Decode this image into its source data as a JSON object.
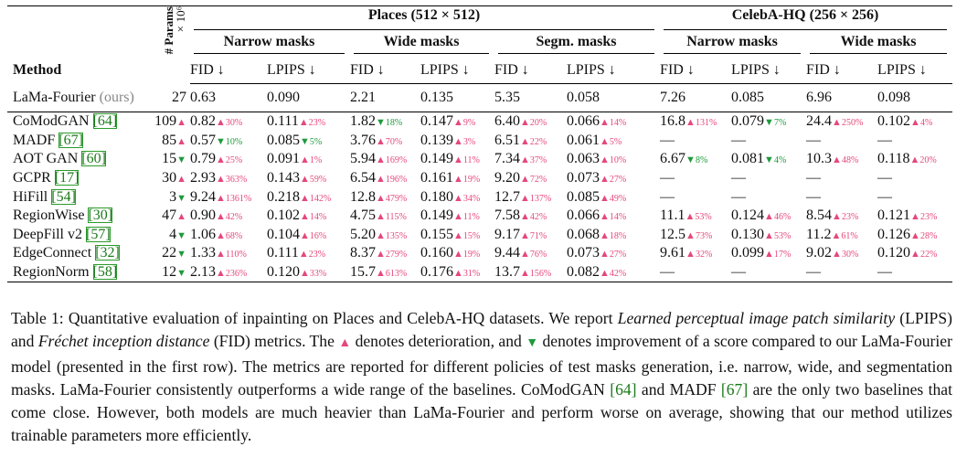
{
  "table": {
    "header": {
      "method": "Method",
      "params": "# Params",
      "params_unit": "×10⁶",
      "datasets": [
        "Places (512 × 512)",
        "CelebA-HQ (256 × 256)"
      ],
      "masks": [
        "Narrow masks",
        "Wide masks",
        "Segm. masks",
        "Narrow masks",
        "Wide masks"
      ],
      "metrics": [
        "FID ↓",
        "LPIPS ↓",
        "FID ↓",
        "LPIPS ↓",
        "FID ↓",
        "LPIPS ↓",
        "FID ↓",
        "LPIPS ↓",
        "FID ↓",
        "LPIPS ↓"
      ]
    },
    "arrow_colors": {
      "▲": "#e5487a",
      "▼": "#1f9a3c"
    },
    "baseline": {
      "method": "LaMa-Fourier",
      "note": "(ours)",
      "params": "27",
      "cells": [
        "0.63",
        "0.090",
        "2.21",
        "0.135",
        "5.35",
        "0.058",
        "7.26",
        "0.085",
        "6.96",
        "0.098"
      ]
    },
    "rows": [
      {
        "method": "CoModGAN",
        "ref": "[64]",
        "params": "109",
        "params_arrow": "▲",
        "cells": [
          [
            "0.82",
            "▲",
            "30%"
          ],
          [
            "0.111",
            "▲",
            "23%"
          ],
          [
            "1.82",
            "▼",
            "18%"
          ],
          [
            "0.147",
            "▲",
            "9%"
          ],
          [
            "6.40",
            "▲",
            "20%"
          ],
          [
            "0.066",
            "▲",
            "14%"
          ],
          [
            "16.8",
            "▲",
            "131%"
          ],
          [
            "0.079",
            "▼",
            "7%"
          ],
          [
            "24.4",
            "▲",
            "250%"
          ],
          [
            "0.102",
            "▲",
            "4%"
          ]
        ]
      },
      {
        "method": "MADF",
        "ref": "[67]",
        "params": "85",
        "params_arrow": "▲",
        "cells": [
          [
            "0.57",
            "▼",
            "10%"
          ],
          [
            "0.085",
            "▼",
            "5%"
          ],
          [
            "3.76",
            "▲",
            "70%"
          ],
          [
            "0.139",
            "▲",
            "3%"
          ],
          [
            "6.51",
            "▲",
            "22%"
          ],
          [
            "0.061",
            "▲",
            "5%"
          ],
          "—",
          "—",
          "—",
          "—"
        ]
      },
      {
        "method": "AOT GAN",
        "ref": "[60]",
        "params": "15",
        "params_arrow": "▼",
        "cells": [
          [
            "0.79",
            "▲",
            "25%"
          ],
          [
            "0.091",
            "▲",
            "1%"
          ],
          [
            "5.94",
            "▲",
            "169%"
          ],
          [
            "0.149",
            "▲",
            "11%"
          ],
          [
            "7.34",
            "▲",
            "37%"
          ],
          [
            "0.063",
            "▲",
            "10%"
          ],
          [
            "6.67",
            "▼",
            "8%"
          ],
          [
            "0.081",
            "▼",
            "4%"
          ],
          [
            "10.3",
            "▲",
            "48%"
          ],
          [
            "0.118",
            "▲",
            "20%"
          ]
        ]
      },
      {
        "method": "GCPR",
        "ref": "[17]",
        "params": "30",
        "params_arrow": "▲",
        "cells": [
          [
            "2.93",
            "▲",
            "363%"
          ],
          [
            "0.143",
            "▲",
            "59%"
          ],
          [
            "6.54",
            "▲",
            "196%"
          ],
          [
            "0.161",
            "▲",
            "19%"
          ],
          [
            "9.20",
            "▲",
            "72%"
          ],
          [
            "0.073",
            "▲",
            "27%"
          ],
          "—",
          "—",
          "—",
          "—"
        ]
      },
      {
        "method": "HiFill",
        "ref": "[54]",
        "params": "3",
        "params_arrow": "▼",
        "cells": [
          [
            "9.24",
            "▲",
            "1361%"
          ],
          [
            "0.218",
            "▲",
            "142%"
          ],
          [
            "12.8",
            "▲",
            "479%"
          ],
          [
            "0.180",
            "▲",
            "34%"
          ],
          [
            "12.7",
            "▲",
            "137%"
          ],
          [
            "0.085",
            "▲",
            "49%"
          ],
          "—",
          "—",
          "—",
          "—"
        ]
      },
      {
        "method": "RegionWise",
        "ref": "[30]",
        "params": "47",
        "params_arrow": "▲",
        "cells": [
          [
            "0.90",
            "▲",
            "42%"
          ],
          [
            "0.102",
            "▲",
            "14%"
          ],
          [
            "4.75",
            "▲",
            "115%"
          ],
          [
            "0.149",
            "▲",
            "11%"
          ],
          [
            "7.58",
            "▲",
            "42%"
          ],
          [
            "0.066",
            "▲",
            "14%"
          ],
          [
            "11.1",
            "▲",
            "53%"
          ],
          [
            "0.124",
            "▲",
            "46%"
          ],
          [
            "8.54",
            "▲",
            "23%"
          ],
          [
            "0.121",
            "▲",
            "23%"
          ]
        ]
      },
      {
        "method": "DeepFill v2",
        "ref": "[57]",
        "params": "4",
        "params_arrow": "▼",
        "cells": [
          [
            "1.06",
            "▲",
            "68%"
          ],
          [
            "0.104",
            "▲",
            "16%"
          ],
          [
            "5.20",
            "▲",
            "135%"
          ],
          [
            "0.155",
            "▲",
            "15%"
          ],
          [
            "9.17",
            "▲",
            "71%"
          ],
          [
            "0.068",
            "▲",
            "18%"
          ],
          [
            "12.5",
            "▲",
            "73%"
          ],
          [
            "0.130",
            "▲",
            "53%"
          ],
          [
            "11.2",
            "▲",
            "61%"
          ],
          [
            "0.126",
            "▲",
            "28%"
          ]
        ]
      },
      {
        "method": "EdgeConnect",
        "ref": "[32]",
        "params": "22",
        "params_arrow": "▼",
        "cells": [
          [
            "1.33",
            "▲",
            "110%"
          ],
          [
            "0.111",
            "▲",
            "23%"
          ],
          [
            "8.37",
            "▲",
            "279%"
          ],
          [
            "0.160",
            "▲",
            "19%"
          ],
          [
            "9.44",
            "▲",
            "76%"
          ],
          [
            "0.073",
            "▲",
            "27%"
          ],
          [
            "9.61",
            "▲",
            "32%"
          ],
          [
            "0.099",
            "▲",
            "17%"
          ],
          [
            "9.02",
            "▲",
            "30%"
          ],
          [
            "0.120",
            "▲",
            "22%"
          ]
        ]
      },
      {
        "method": "RegionNorm",
        "ref": "[58]",
        "params": "12",
        "params_arrow": "▼",
        "cells": [
          [
            "2.13",
            "▲",
            "236%"
          ],
          [
            "0.120",
            "▲",
            "33%"
          ],
          [
            "15.7",
            "▲",
            "613%"
          ],
          [
            "0.176",
            "▲",
            "31%"
          ],
          [
            "13.7",
            "▲",
            "156%"
          ],
          [
            "0.082",
            "▲",
            "42%"
          ],
          "—",
          "—",
          "—",
          "—"
        ]
      }
    ]
  },
  "caption": [
    "Table 1: Quantitative evaluation of inpainting on Places and CelebA-HQ datasets. We report ",
    "Learned perceptual image patch similarity",
    " (LPIPS) and ",
    "Fréchet inception distance",
    " (FID) metrics. The ",
    "▲",
    " denotes deterioration, and ",
    "▼",
    " denotes improvement of a score compared to our LaMa-Fourier model (presented in the first row). The metrics are reported for different policies of test masks generation, i.e. narrow, wide, and segmentation masks. LaMa-Fourier consistently outperforms a wide range of the baselines. CoModGAN ",
    "[64]",
    " and MADF ",
    "[67]",
    " are the only two baselines that come close. However, both models are much heavier than LaMa-Fourier and perform worse on average, showing that our method utilizes trainable parameters more efficiently."
  ]
}
